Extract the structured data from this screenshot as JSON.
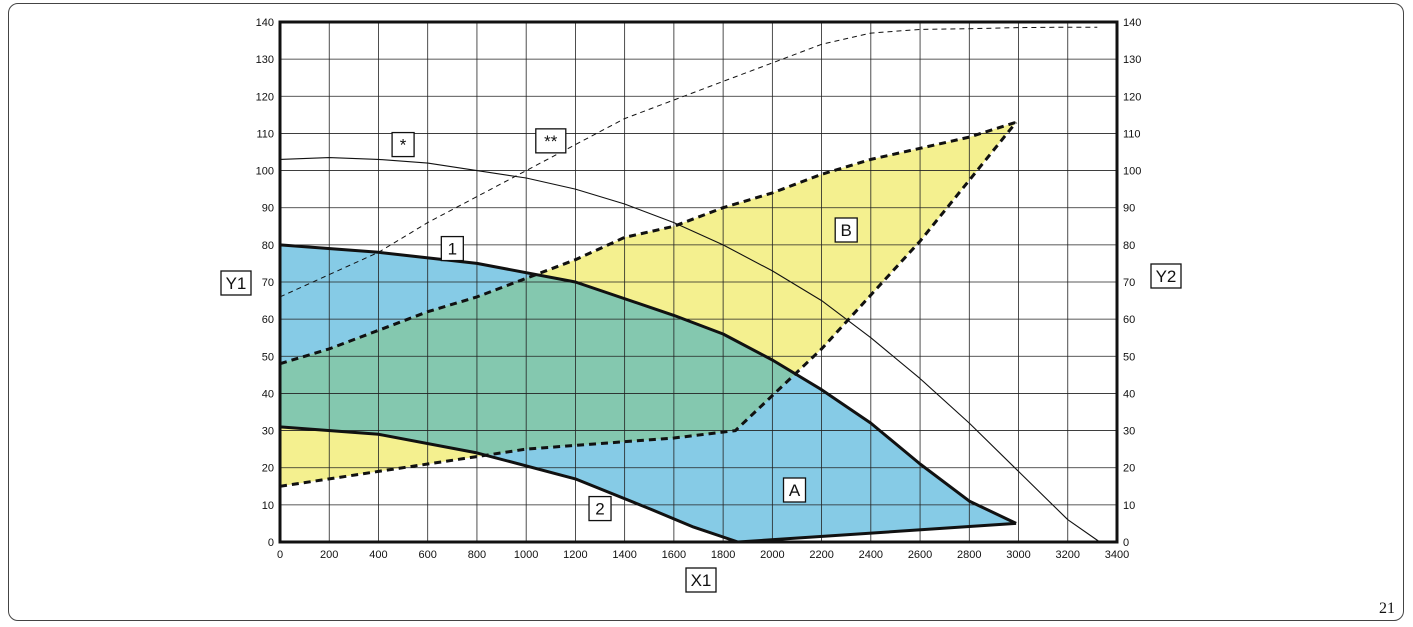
{
  "page_number": "21",
  "chart_data": {
    "type": "area",
    "title": "",
    "xlabel": "X1",
    "ylabel": "Y1",
    "y2label": "Y2",
    "xlim": [
      0,
      3400
    ],
    "ylim": [
      0,
      140
    ],
    "y2lim": [
      0,
      140
    ],
    "x_ticks": [
      0,
      200,
      400,
      600,
      800,
      1000,
      1200,
      1400,
      1600,
      1800,
      2000,
      2200,
      2400,
      2600,
      2800,
      3000,
      3200,
      3400
    ],
    "y_ticks": [
      0,
      10,
      20,
      30,
      40,
      50,
      60,
      70,
      80,
      90,
      100,
      110,
      120,
      130,
      140
    ],
    "grid": true,
    "colors": {
      "A": "#86cbe6",
      "B": "#f4f08f",
      "overlap": "#84c8af",
      "outline": "#111111"
    },
    "regions": [
      {
        "name": "A",
        "label_at": [
          2090,
          14
        ],
        "upper": [
          [
            0,
            80
          ],
          [
            400,
            78
          ],
          [
            800,
            75
          ],
          [
            1200,
            70
          ],
          [
            1600,
            61
          ],
          [
            1800,
            56
          ],
          [
            2000,
            49
          ],
          [
            2200,
            41
          ],
          [
            2400,
            32
          ],
          [
            2600,
            21
          ],
          [
            2800,
            11
          ],
          [
            2990,
            5
          ]
        ],
        "lower": [
          [
            0,
            31
          ],
          [
            400,
            29
          ],
          [
            800,
            24
          ],
          [
            1200,
            17
          ],
          [
            1500,
            9
          ],
          [
            1680,
            4
          ],
          [
            1860,
            0
          ],
          [
            2990,
            5
          ]
        ]
      },
      {
        "name": "B",
        "label_at": [
          2300,
          84
        ],
        "upper": [
          [
            0,
            48
          ],
          [
            200,
            52
          ],
          [
            400,
            57
          ],
          [
            600,
            62
          ],
          [
            800,
            66
          ],
          [
            1000,
            71
          ],
          [
            1200,
            76
          ],
          [
            1400,
            82
          ],
          [
            1600,
            85
          ],
          [
            1800,
            90
          ],
          [
            2000,
            94
          ],
          [
            2200,
            99
          ],
          [
            2400,
            103
          ],
          [
            2600,
            106
          ],
          [
            2800,
            109
          ],
          [
            2990,
            113
          ]
        ],
        "lower": [
          [
            0,
            15
          ],
          [
            200,
            17
          ],
          [
            400,
            19
          ],
          [
            600,
            21
          ],
          [
            800,
            23
          ],
          [
            1000,
            25
          ],
          [
            1200,
            26
          ],
          [
            1400,
            27
          ],
          [
            1600,
            28
          ],
          [
            1850,
            30
          ],
          [
            2200,
            52
          ],
          [
            2600,
            81
          ],
          [
            2990,
            113
          ]
        ]
      }
    ],
    "series": [
      {
        "name": "1",
        "axis": "y1",
        "style": "thick",
        "label_at": [
          700,
          79
        ],
        "points": [
          [
            0,
            80
          ],
          [
            400,
            78
          ],
          [
            800,
            75
          ],
          [
            1200,
            70
          ],
          [
            1600,
            61
          ],
          [
            1800,
            56
          ],
          [
            2000,
            49
          ],
          [
            2200,
            41
          ],
          [
            2400,
            32
          ],
          [
            2600,
            21
          ],
          [
            2800,
            11
          ],
          [
            2990,
            5
          ]
        ]
      },
      {
        "name": "2",
        "axis": "y1",
        "style": "thick",
        "label_at": [
          1300,
          9
        ],
        "points": [
          [
            0,
            31
          ],
          [
            400,
            29
          ],
          [
            800,
            24
          ],
          [
            1200,
            17
          ],
          [
            1500,
            9
          ],
          [
            1680,
            4
          ],
          [
            1860,
            0
          ]
        ]
      },
      {
        "name": "*",
        "axis": "y2",
        "style": "thin",
        "label_at": [
          500,
          107
        ],
        "points": [
          [
            0,
            103
          ],
          [
            200,
            103.5
          ],
          [
            400,
            103
          ],
          [
            600,
            102
          ],
          [
            800,
            100
          ],
          [
            1000,
            98
          ],
          [
            1200,
            95
          ],
          [
            1400,
            91
          ],
          [
            1600,
            86
          ],
          [
            1800,
            80
          ],
          [
            2000,
            73
          ],
          [
            2200,
            65
          ],
          [
            2400,
            55
          ],
          [
            2600,
            44
          ],
          [
            2800,
            32
          ],
          [
            3000,
            19
          ],
          [
            3200,
            6
          ],
          [
            3330,
            0
          ]
        ]
      },
      {
        "name": "**",
        "axis": "y2",
        "style": "dashed-thin",
        "label_at": [
          1100,
          108
        ],
        "points": [
          [
            0,
            66
          ],
          [
            200,
            72
          ],
          [
            400,
            78
          ],
          [
            600,
            86
          ],
          [
            800,
            93
          ],
          [
            1000,
            100
          ],
          [
            1200,
            107
          ],
          [
            1400,
            114
          ],
          [
            1600,
            119
          ],
          [
            1800,
            124
          ],
          [
            2000,
            129
          ],
          [
            2200,
            134
          ],
          [
            2400,
            137
          ],
          [
            2600,
            138
          ],
          [
            2800,
            138.2
          ],
          [
            3000,
            138.5
          ],
          [
            3200,
            138.6
          ],
          [
            3320,
            138.6
          ]
        ]
      },
      {
        "name": "B-upper",
        "axis": "y1",
        "style": "thick-dashed",
        "points": [
          [
            0,
            48
          ],
          [
            200,
            52
          ],
          [
            400,
            57
          ],
          [
            600,
            62
          ],
          [
            800,
            66
          ],
          [
            1000,
            71
          ],
          [
            1200,
            76
          ],
          [
            1400,
            82
          ],
          [
            1600,
            85
          ],
          [
            1800,
            90
          ],
          [
            2000,
            94
          ],
          [
            2200,
            99
          ],
          [
            2400,
            103
          ],
          [
            2600,
            106
          ],
          [
            2800,
            109
          ],
          [
            2990,
            113
          ]
        ]
      },
      {
        "name": "B-lower",
        "axis": "y1",
        "style": "thick-dashed",
        "points": [
          [
            0,
            15
          ],
          [
            200,
            17
          ],
          [
            400,
            19
          ],
          [
            600,
            21
          ],
          [
            800,
            23
          ],
          [
            1000,
            25
          ],
          [
            1200,
            26
          ],
          [
            1400,
            27
          ],
          [
            1600,
            28
          ],
          [
            1850,
            30
          ],
          [
            2200,
            52
          ],
          [
            2600,
            81
          ],
          [
            2990,
            113
          ]
        ]
      },
      {
        "name": "A-bottom",
        "axis": "y1",
        "style": "thick",
        "points": [
          [
            1860,
            0
          ],
          [
            2990,
            5
          ]
        ]
      }
    ],
    "box_labels": [
      "Y1",
      "Y2",
      "X1",
      "1",
      "2",
      "A",
      "B",
      "*",
      "**"
    ]
  }
}
